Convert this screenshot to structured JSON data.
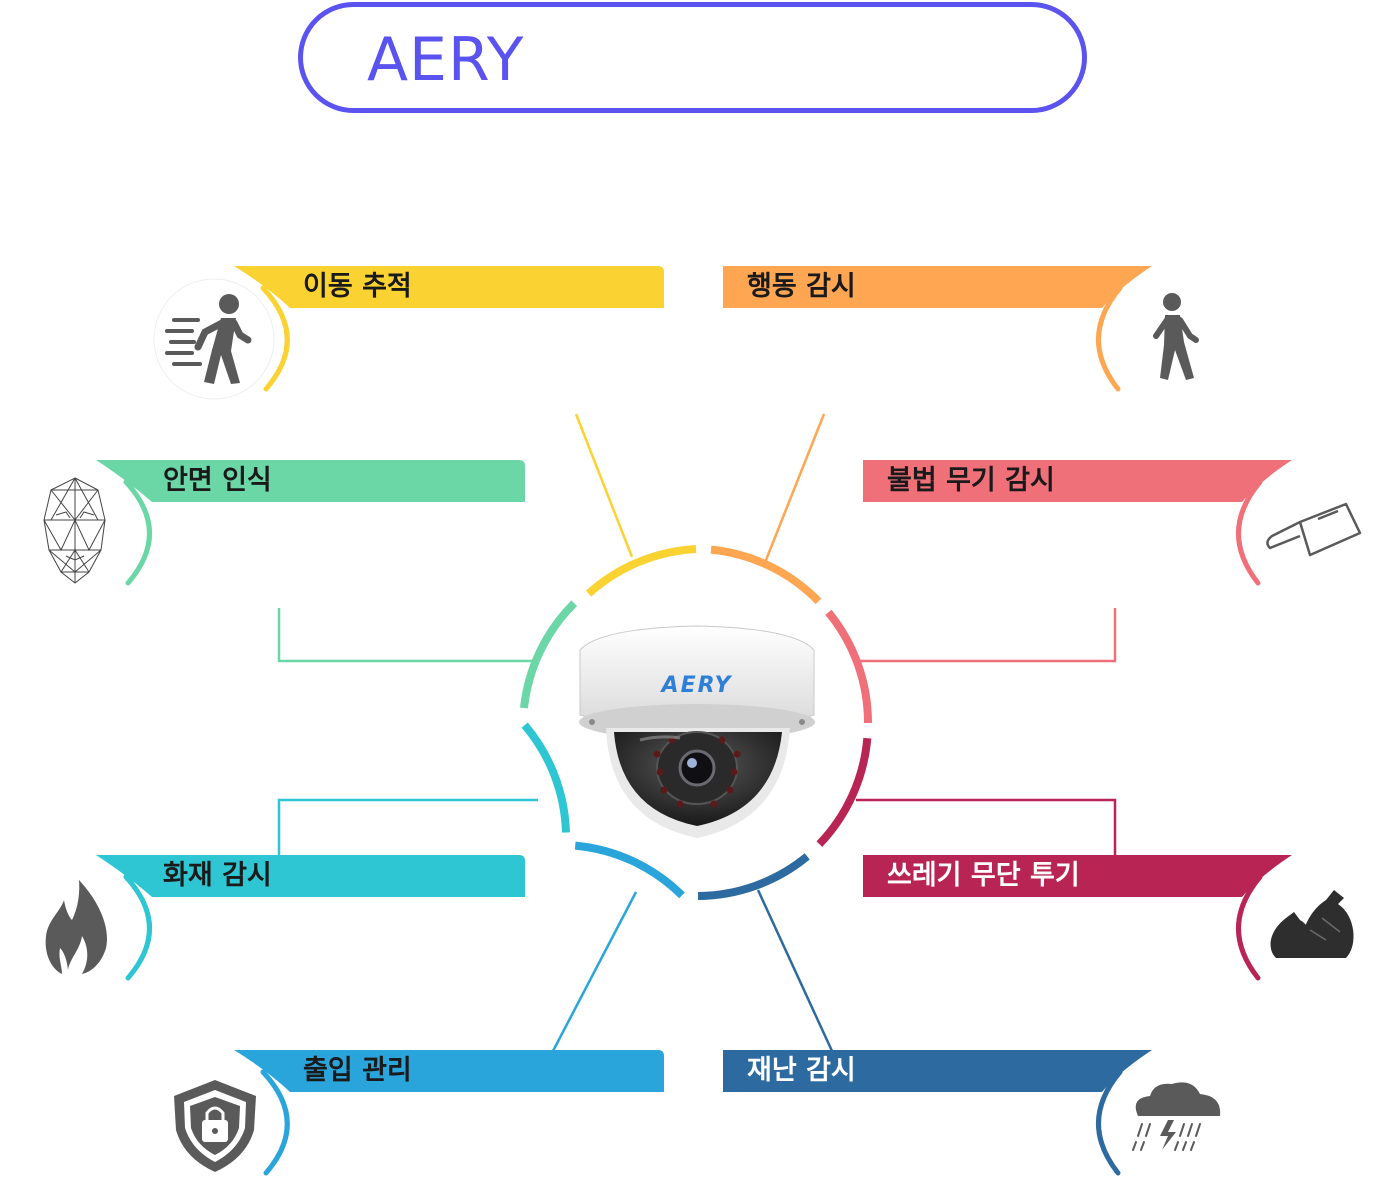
{
  "title": "AERY",
  "camera_logo": "AERY",
  "features": [
    {
      "id": "motion-tracking",
      "label": "이동 추적",
      "color": "#fad232",
      "icon": "running-person-icon"
    },
    {
      "id": "behavior-monitoring",
      "label": "행동 감시",
      "color": "#ffa653",
      "icon": "walking-person-icon"
    },
    {
      "id": "face-recognition",
      "label": "안면 인식",
      "color": "#6bd6a6",
      "icon": "face-mesh-icon"
    },
    {
      "id": "illegal-weapon-monitoring",
      "label": "불법 무기 감시",
      "color": "#f07079",
      "icon": "knife-icon"
    },
    {
      "id": "fire-monitoring",
      "label": "화재 감시",
      "color": "#2ec6d3",
      "icon": "flame-icon"
    },
    {
      "id": "illegal-dumping",
      "label": "쓰레기 무단 투기",
      "color": "#b82555",
      "icon": "garbage-bag-icon"
    },
    {
      "id": "access-control",
      "label": "출입 관리",
      "color": "#2aa5dc",
      "icon": "shield-lock-icon"
    },
    {
      "id": "disaster-monitoring",
      "label": "재난 감시",
      "color": "#2d6a9f",
      "icon": "storm-cloud-icon"
    }
  ]
}
